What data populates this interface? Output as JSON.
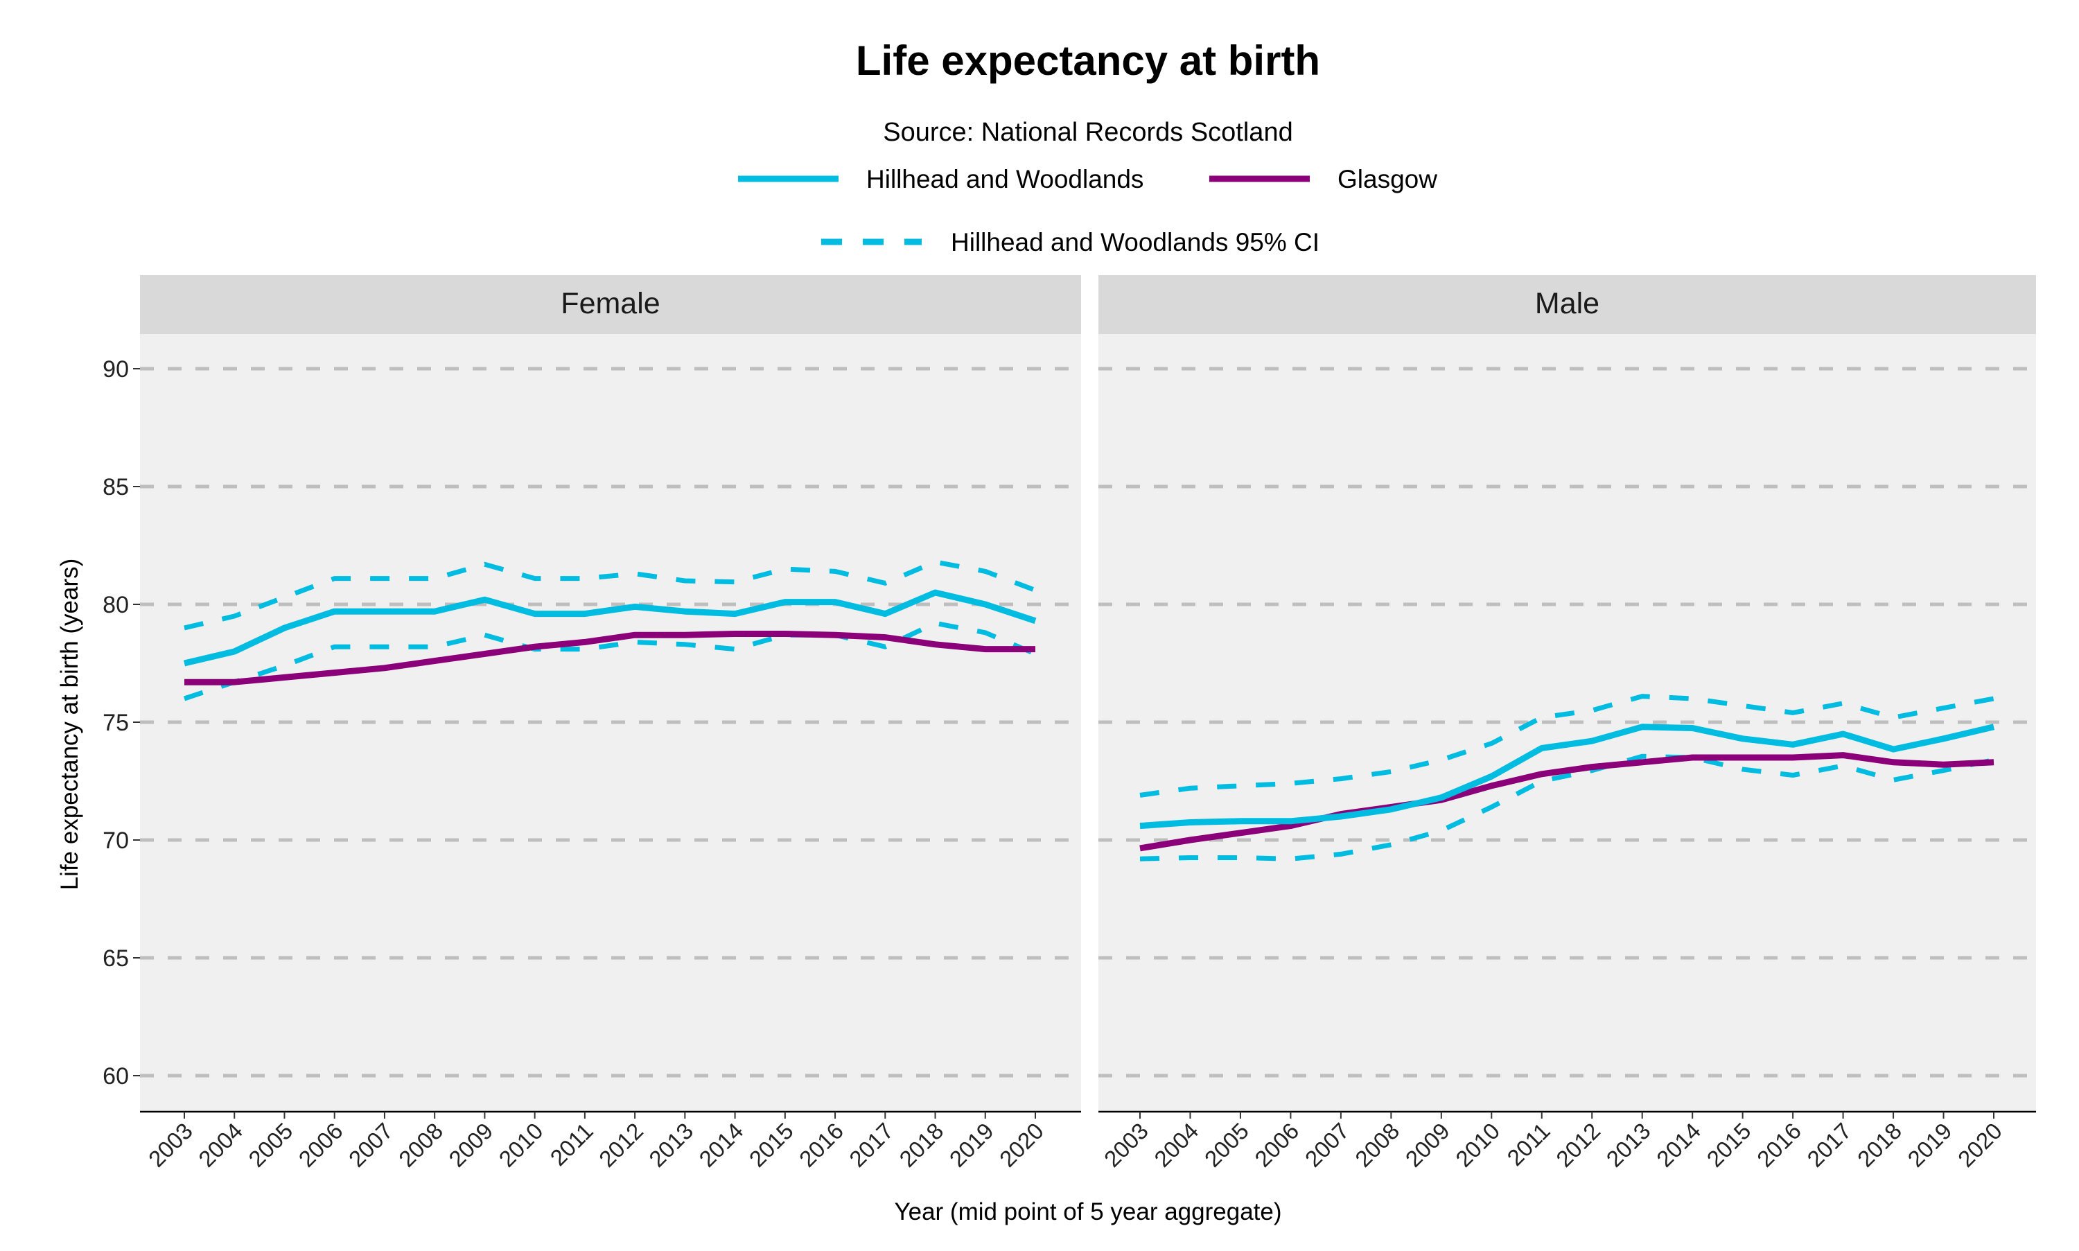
{
  "chart_data": {
    "type": "line",
    "title": "Life expectancy at birth",
    "subtitle": "Source: National Records Scotland",
    "xlabel": "Year (mid point of 5 year aggregate)",
    "ylabel": "Life expectancy at birth (years)",
    "ylim": [
      58.5,
      92
    ],
    "yticks": [
      60,
      65,
      70,
      75,
      80,
      85,
      90
    ],
    "grid": true,
    "legend_position": "top",
    "legend": [
      {
        "label": "Hillhead and Woodlands",
        "color": "#00BCE0",
        "style": "solid"
      },
      {
        "label": "Glasgow",
        "color": "#8B0079",
        "style": "solid"
      },
      {
        "label": "Hillhead and Woodlands 95% CI",
        "color": "#00BCE0",
        "style": "dashed"
      }
    ],
    "x": [
      "2003",
      "2004",
      "2005",
      "2006",
      "2007",
      "2008",
      "2009",
      "2010",
      "2011",
      "2012",
      "2013",
      "2014",
      "2015",
      "2016",
      "2017",
      "2018",
      "2019",
      "2020"
    ],
    "panels": [
      {
        "label": "Female",
        "series": [
          {
            "name": "Hillhead and Woodlands",
            "values": [
              77.5,
              78.0,
              79.0,
              79.7,
              79.7,
              79.7,
              80.2,
              79.6,
              79.6,
              79.9,
              79.7,
              79.6,
              80.1,
              80.1,
              79.6,
              80.5,
              80.0,
              79.3
            ]
          },
          {
            "name": "Glasgow",
            "values": [
              76.7,
              76.7,
              76.9,
              77.1,
              77.3,
              77.6,
              77.9,
              78.2,
              78.4,
              78.7,
              78.7,
              78.75,
              78.75,
              78.7,
              78.6,
              78.3,
              78.1,
              78.1
            ]
          },
          {
            "name": "Hillhead and Woodlands 95% CI upper",
            "values": [
              79.0,
              79.5,
              80.3,
              81.1,
              81.1,
              81.1,
              81.7,
              81.1,
              81.1,
              81.3,
              81.0,
              80.95,
              81.5,
              81.4,
              80.9,
              81.8,
              81.4,
              80.6
            ]
          },
          {
            "name": "Hillhead and Woodlands 95% CI lower",
            "values": [
              76.0,
              76.7,
              77.4,
              78.2,
              78.2,
              78.2,
              78.7,
              78.1,
              78.1,
              78.4,
              78.3,
              78.1,
              78.7,
              78.7,
              78.2,
              79.2,
              78.8,
              77.9
            ]
          }
        ]
      },
      {
        "label": "Male",
        "series": [
          {
            "name": "Hillhead and Woodlands",
            "values": [
              70.6,
              70.75,
              70.8,
              70.8,
              71.0,
              71.3,
              71.8,
              72.7,
              73.9,
              74.2,
              74.8,
              74.75,
              74.3,
              74.05,
              74.5,
              73.85,
              74.3,
              74.8
            ]
          },
          {
            "name": "Glasgow",
            "values": [
              69.65,
              70.0,
              70.3,
              70.6,
              71.1,
              71.4,
              71.7,
              72.3,
              72.8,
              73.1,
              73.3,
              73.5,
              73.5,
              73.5,
              73.6,
              73.3,
              73.2,
              73.3
            ]
          },
          {
            "name": "Hillhead and Woodlands 95% CI upper",
            "values": [
              71.9,
              72.2,
              72.3,
              72.4,
              72.6,
              72.9,
              73.4,
              74.1,
              75.2,
              75.5,
              76.1,
              76.0,
              75.7,
              75.4,
              75.8,
              75.2,
              75.6,
              76.0
            ]
          },
          {
            "name": "Hillhead and Woodlands 95% CI lower",
            "values": [
              69.2,
              69.25,
              69.25,
              69.2,
              69.4,
              69.8,
              70.4,
              71.4,
              72.5,
              72.95,
              73.55,
              73.5,
              73.0,
              72.75,
              73.15,
              72.55,
              72.95,
              73.4
            ]
          }
        ]
      }
    ]
  }
}
